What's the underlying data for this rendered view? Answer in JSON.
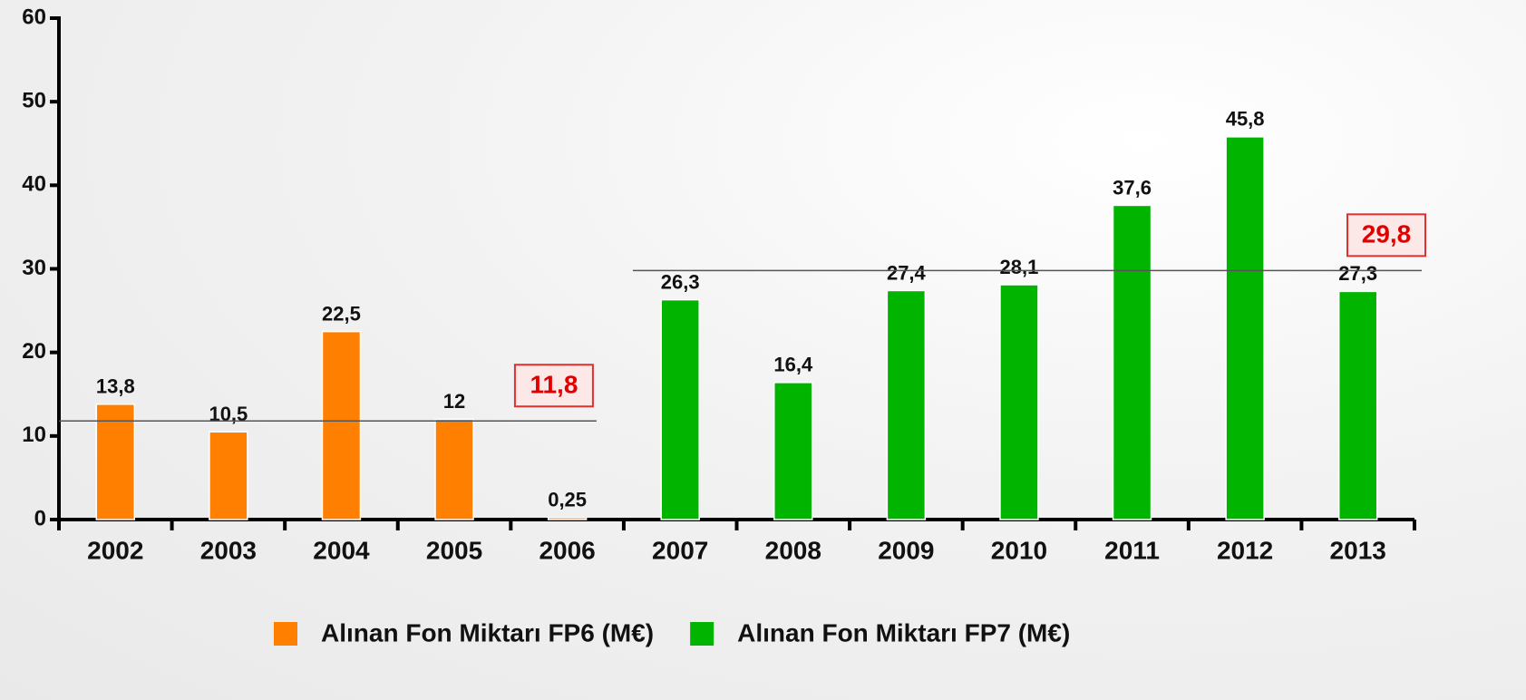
{
  "chart_data": {
    "type": "bar",
    "categories": [
      "2002",
      "2003",
      "2004",
      "2005",
      "2006",
      "2007",
      "2008",
      "2009",
      "2010",
      "2011",
      "2012",
      "2013"
    ],
    "series": [
      {
        "name": "Alınan Fon Miktarı FP6 (M€)",
        "color": "#ff8000",
        "values": [
          13.8,
          10.5,
          22.5,
          12,
          0.25,
          null,
          null,
          null,
          null,
          null,
          null,
          null
        ],
        "value_labels": [
          "13,8",
          "10,5",
          "22,5",
          "12",
          "0,25",
          null,
          null,
          null,
          null,
          null,
          null,
          null
        ],
        "average": 11.8,
        "average_label": "11,8"
      },
      {
        "name": "Alınan Fon Miktarı FP7 (M€)",
        "color": "#00b400",
        "values": [
          null,
          null,
          null,
          null,
          null,
          26.3,
          16.4,
          27.4,
          28.1,
          37.6,
          45.8,
          27.3
        ],
        "value_labels": [
          null,
          null,
          null,
          null,
          null,
          "26,3",
          "16,4",
          "27,4",
          "28,1",
          "37,6",
          "45,8",
          "27,3"
        ],
        "average": 29.8,
        "average_label": "29,8"
      }
    ],
    "ylim": [
      0,
      60
    ],
    "yticks": [
      0,
      10,
      20,
      30,
      40,
      50,
      60
    ],
    "grid": false,
    "legend": "bottom"
  }
}
